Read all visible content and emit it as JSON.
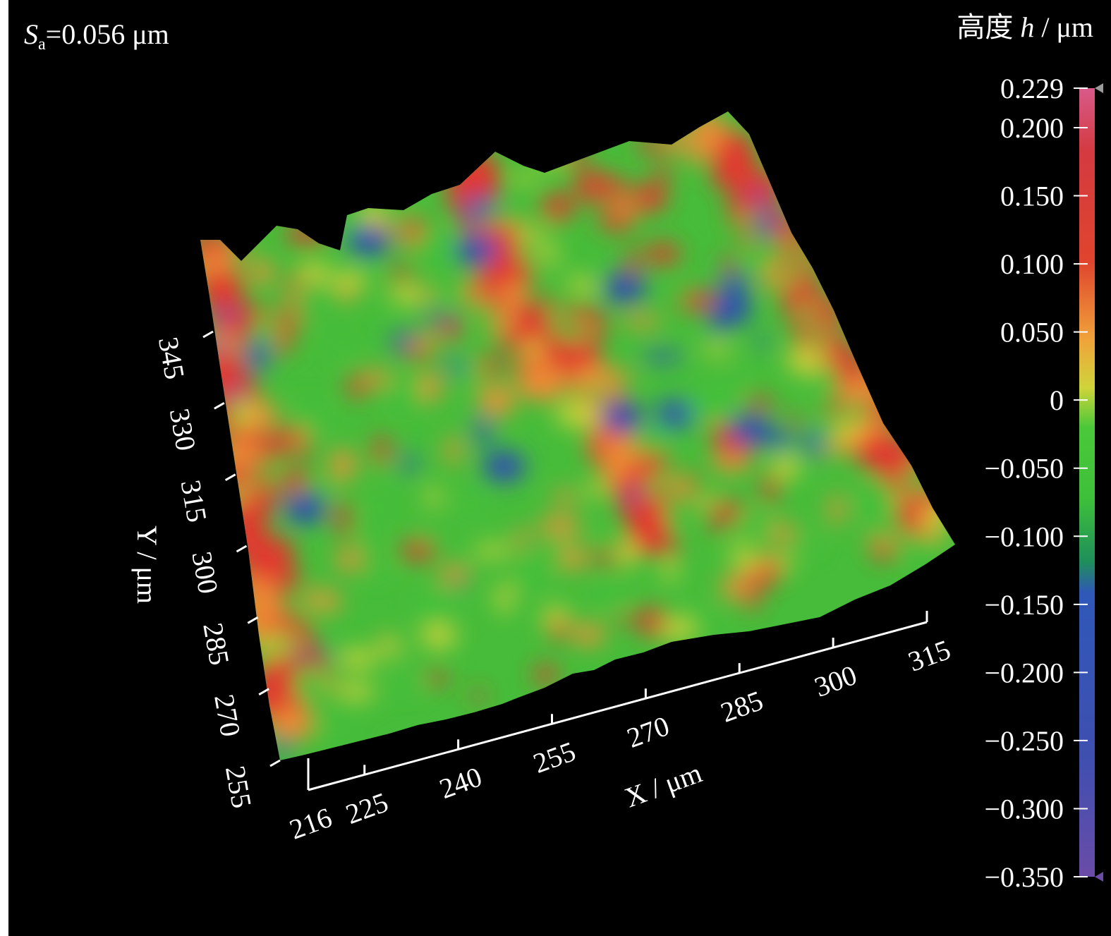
{
  "chart_data": {
    "type": "heatmap",
    "subtype": "3d-surface",
    "annotation": {
      "symbol": "S",
      "subscript": "a",
      "text": "=0.056 μm"
    },
    "x_axis": {
      "label": "X / μm",
      "ticks": [
        "216",
        "225",
        "240",
        "255",
        "270",
        "285",
        "300",
        "315"
      ],
      "range": [
        216,
        315
      ]
    },
    "y_axis": {
      "label": "Y / μm",
      "ticks": [
        "255",
        "270",
        "285",
        "300",
        "315",
        "330",
        "345"
      ],
      "range": [
        255,
        345
      ]
    },
    "colorbar": {
      "title_prefix": "高度 ",
      "title_symbol": "h",
      "title_suffix": " / μm",
      "ticks": [
        "0.229",
        "0.200",
        "0.150",
        "0.100",
        "0.050",
        "0",
        "−0.050",
        "−0.100",
        "−0.150",
        "−0.200",
        "−0.250",
        "−0.300",
        "−0.350"
      ],
      "tick_values": [
        0.229,
        0.2,
        0.15,
        0.1,
        0.05,
        0,
        -0.05,
        -0.1,
        -0.15,
        -0.2,
        -0.25,
        -0.3,
        -0.35
      ],
      "range": [
        -0.35,
        0.229
      ],
      "colors": [
        "#6a4ca8",
        "#3f4fb0",
        "#2f58b8",
        "#1f8f5a",
        "#3ec03a",
        "#4bc83a",
        "#cfd43a",
        "#f0a43a",
        "#e0442e",
        "#d43a40",
        "#d85a8a"
      ]
    }
  }
}
